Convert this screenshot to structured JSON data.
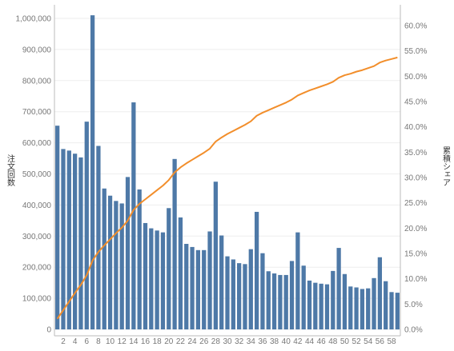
{
  "chart_data": {
    "type": "bar+line",
    "categories": [
      1,
      2,
      3,
      4,
      5,
      6,
      7,
      8,
      9,
      10,
      11,
      12,
      13,
      14,
      15,
      16,
      17,
      18,
      19,
      20,
      21,
      22,
      23,
      24,
      25,
      26,
      27,
      28,
      29,
      30,
      31,
      32,
      33,
      34,
      35,
      36,
      37,
      38,
      39,
      40,
      41,
      42,
      43,
      44,
      45,
      46,
      47,
      48,
      49,
      50,
      51,
      52,
      53,
      54,
      55,
      56,
      57,
      58,
      59
    ],
    "x_tick_labels": [
      "2",
      "4",
      "6",
      "8",
      "10",
      "12",
      "14",
      "16",
      "18",
      "20",
      "22",
      "24",
      "26",
      "28",
      "30",
      "32",
      "34",
      "36",
      "38",
      "40",
      "42",
      "44",
      "46",
      "48",
      "50",
      "52",
      "54",
      "56",
      "58"
    ],
    "bar_series": {
      "name": "注文回数",
      "color": "#4e79a7",
      "values": [
        655000,
        580000,
        575000,
        565000,
        553000,
        668000,
        1010000,
        590000,
        453000,
        430000,
        413000,
        405000,
        490000,
        730000,
        450000,
        342000,
        325000,
        318000,
        312000,
        390000,
        548000,
        360000,
        275000,
        265000,
        255000,
        255000,
        315000,
        475000,
        302000,
        235000,
        225000,
        213000,
        210000,
        258000,
        378000,
        245000,
        187000,
        180000,
        175000,
        175000,
        220000,
        312000,
        205000,
        157000,
        150000,
        147000,
        145000,
        188000,
        262000,
        178000,
        138000,
        135000,
        130000,
        132000,
        165000,
        232000,
        155000,
        120000,
        118000
      ]
    },
    "line_series": {
      "name": "累積シェア",
      "color": "#f28e2b",
      "values": [
        0.021,
        0.038,
        0.055,
        0.072,
        0.088,
        0.107,
        0.136,
        0.153,
        0.166,
        0.178,
        0.19,
        0.201,
        0.215,
        0.236,
        0.248,
        0.257,
        0.266,
        0.275,
        0.284,
        0.295,
        0.31,
        0.32,
        0.328,
        0.335,
        0.342,
        0.349,
        0.357,
        0.371,
        0.379,
        0.386,
        0.392,
        0.398,
        0.404,
        0.411,
        0.422,
        0.428,
        0.433,
        0.438,
        0.443,
        0.448,
        0.454,
        0.462,
        0.467,
        0.472,
        0.476,
        0.48,
        0.484,
        0.489,
        0.497,
        0.502,
        0.505,
        0.509,
        0.512,
        0.516,
        0.52,
        0.527,
        0.531,
        0.534,
        0.537
      ]
    },
    "y_left": {
      "label": "注文回数",
      "min": 0,
      "max": 1000000,
      "ticks": [
        0,
        100000,
        200000,
        300000,
        400000,
        500000,
        600000,
        700000,
        800000,
        900000,
        1000000
      ],
      "tick_labels": [
        "0",
        "100,000",
        "200,000",
        "300,000",
        "400,000",
        "500,000",
        "600,000",
        "700,000",
        "800,000",
        "900,000",
        "1,000,000"
      ]
    },
    "y_right": {
      "label": "累積シェア",
      "min": 0,
      "max": 0.6,
      "ticks": [
        0,
        0.05,
        0.1,
        0.15,
        0.2,
        0.25,
        0.3,
        0.35,
        0.4,
        0.45,
        0.5,
        0.55,
        0.6
      ],
      "tick_labels": [
        "0.0%",
        "5.0%",
        "10.0%",
        "15.0%",
        "20.0%",
        "25.0%",
        "30.0%",
        "35.0%",
        "40.0%",
        "45.0%",
        "50.0%",
        "55.0%",
        "60.0%"
      ]
    },
    "grid": true,
    "axis_color": "#bbbbbb",
    "grid_color": "#eeeeee"
  }
}
